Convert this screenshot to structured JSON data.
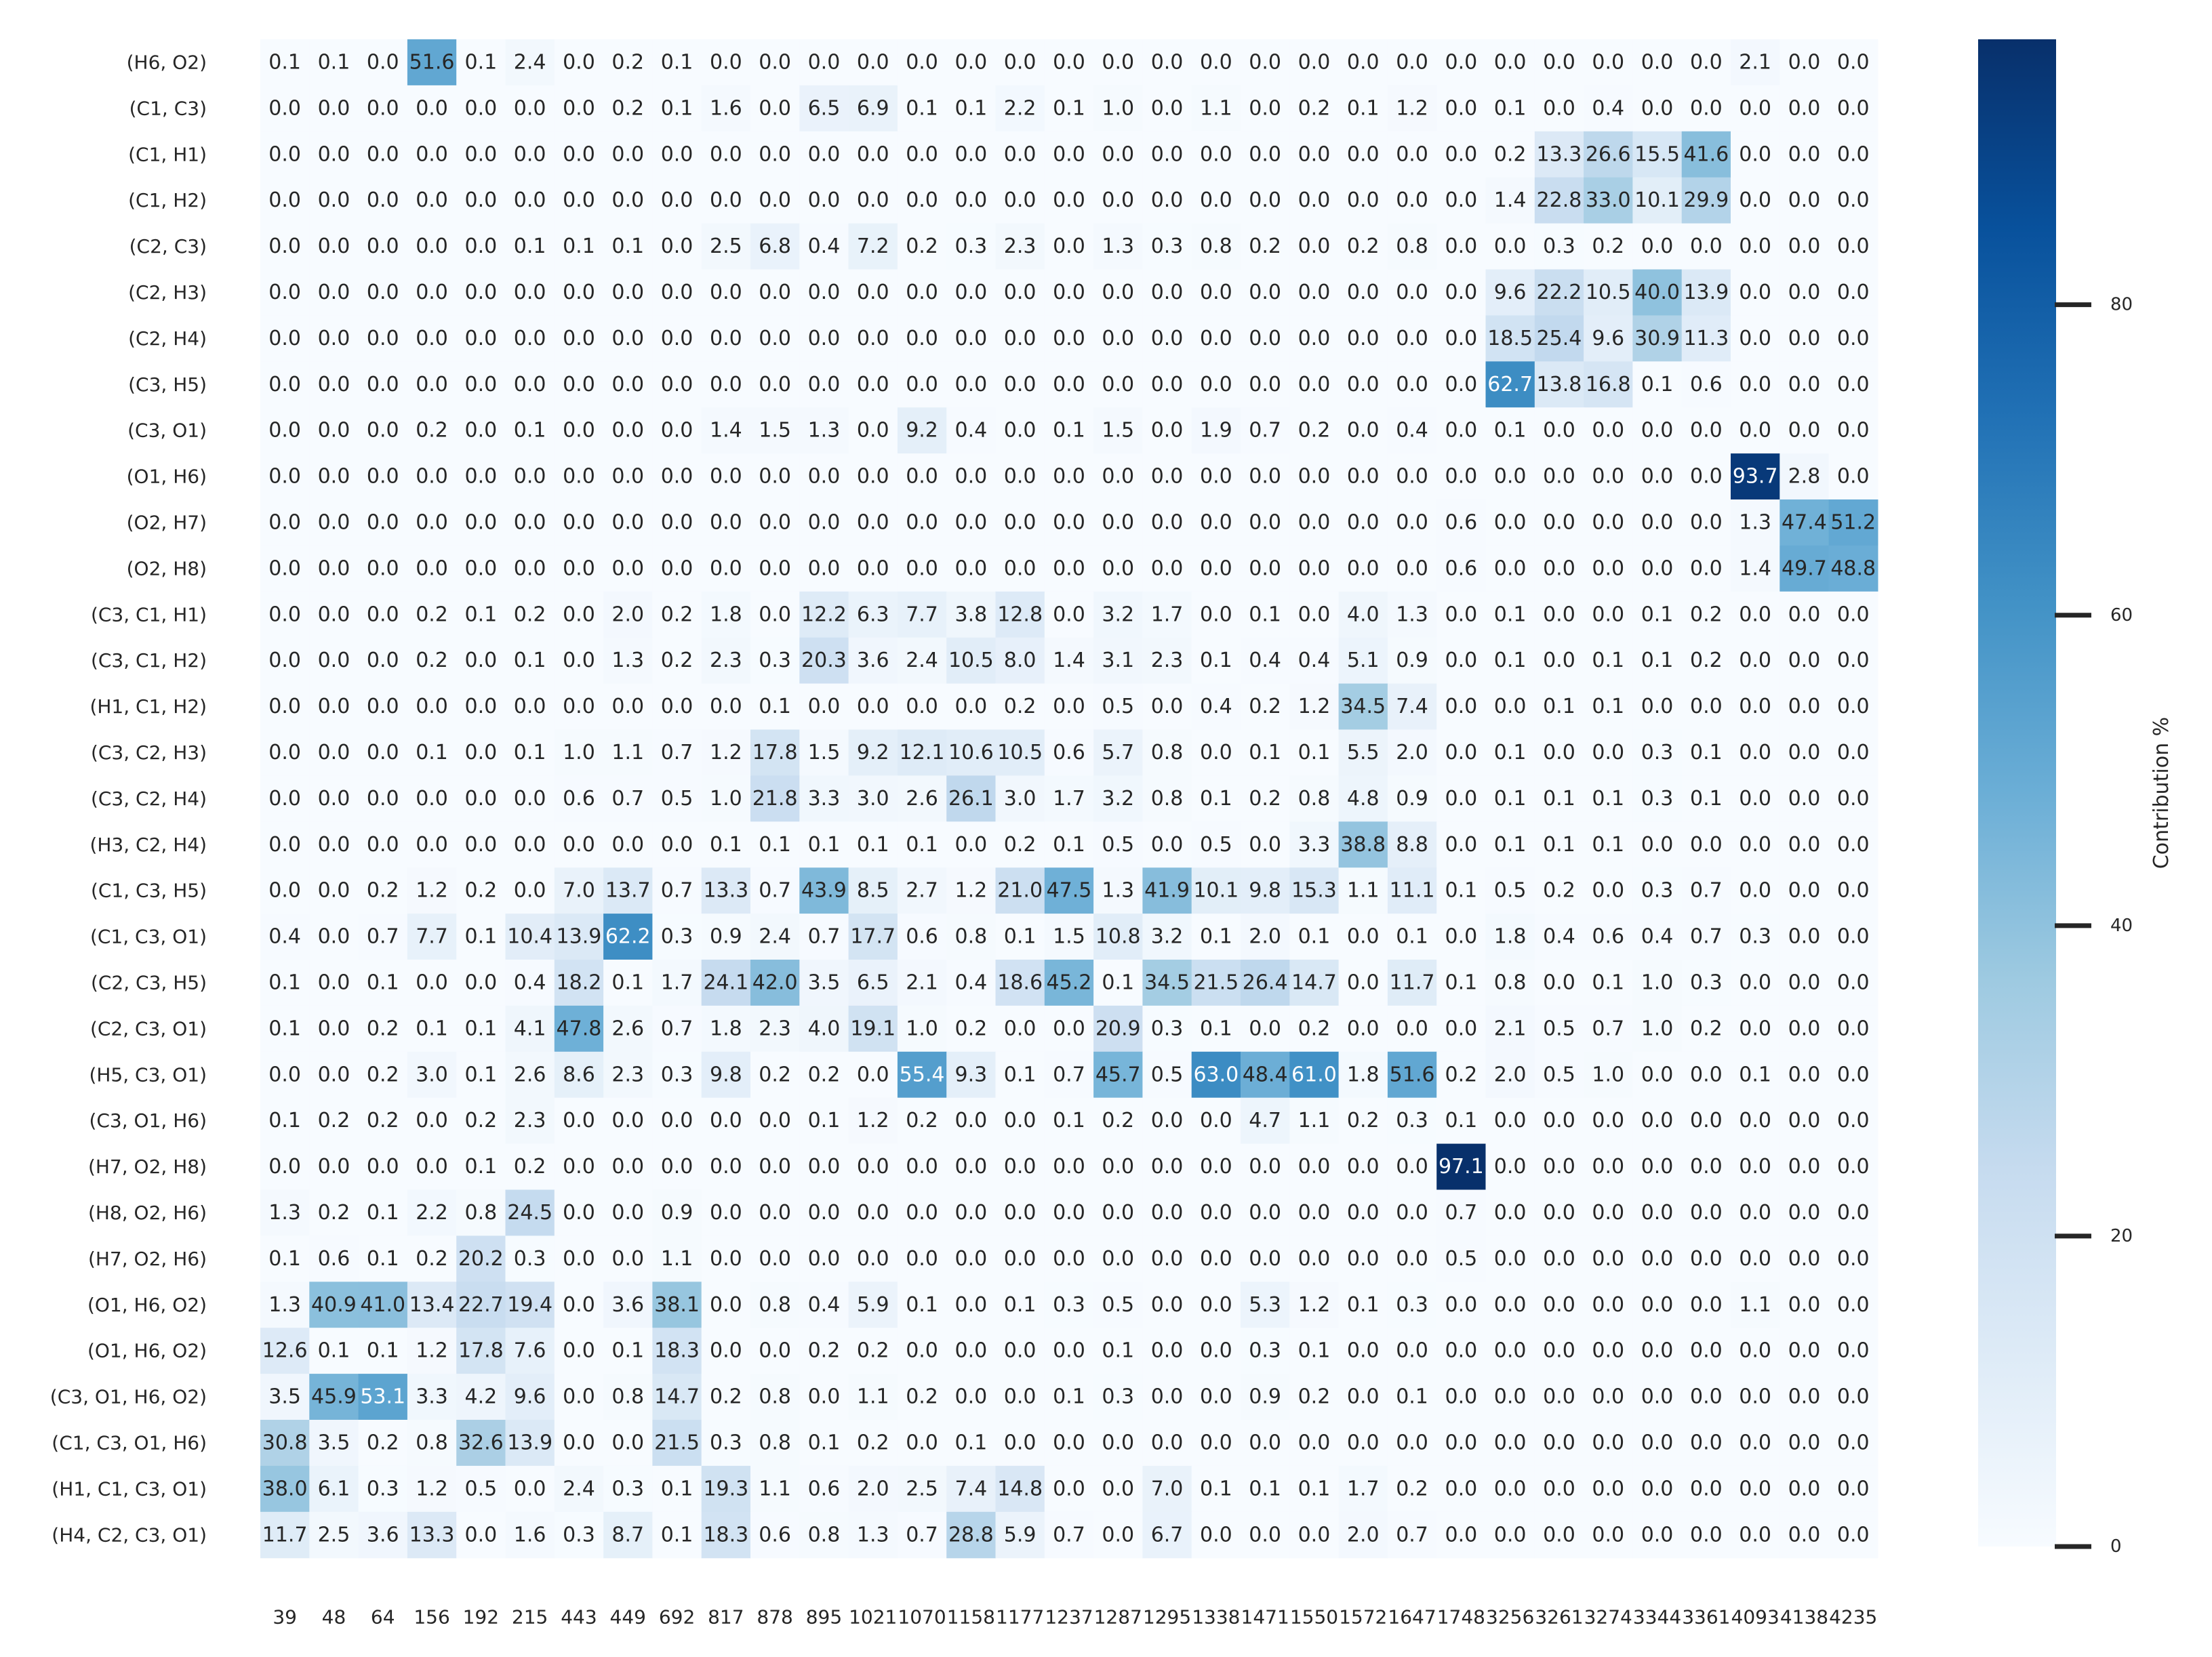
{
  "chart_data": {
    "type": "heatmap",
    "colormap": "Blues",
    "vmin": 0,
    "vmax": 97.1,
    "colorbar": {
      "label": "Contribution %",
      "ticks": [
        0,
        20,
        40,
        60,
        80
      ]
    },
    "columns": [
      "39",
      "48",
      "64",
      "156",
      "192",
      "215",
      "443",
      "449",
      "692",
      "817",
      "878",
      "895",
      "1021",
      "1070",
      "1158",
      "1177",
      "1237",
      "1287",
      "1295",
      "1338",
      "1471",
      "1550",
      "1572",
      "1647",
      "1748",
      "3256",
      "3261",
      "3274",
      "3344",
      "3361",
      "4093",
      "4138",
      "4235"
    ],
    "rows": [
      {
        "label": "(H6, O2)",
        "values": [
          0.1,
          0.1,
          0.0,
          51.6,
          0.1,
          2.4,
          0.0,
          0.2,
          0.1,
          0.0,
          0.0,
          0.0,
          0.0,
          0.0,
          0.0,
          0.0,
          0.0,
          0.0,
          0.0,
          0.0,
          0.0,
          0.0,
          0.0,
          0.0,
          0.0,
          0.0,
          0.0,
          0.0,
          0.0,
          0.0,
          2.1,
          0.0,
          0.0
        ]
      },
      {
        "label": "(C1, C3)",
        "values": [
          0.0,
          0.0,
          0.0,
          0.0,
          0.0,
          0.0,
          0.0,
          0.2,
          0.1,
          1.6,
          0.0,
          6.5,
          6.9,
          0.1,
          0.1,
          2.2,
          0.1,
          1.0,
          0.0,
          1.1,
          0.0,
          0.2,
          0.1,
          1.2,
          0.0,
          0.1,
          0.0,
          0.4,
          0.0,
          0.0,
          0.0,
          0.0,
          0.0
        ]
      },
      {
        "label": "(C1, H1)",
        "values": [
          0.0,
          0.0,
          0.0,
          0.0,
          0.0,
          0.0,
          0.0,
          0.0,
          0.0,
          0.0,
          0.0,
          0.0,
          0.0,
          0.0,
          0.0,
          0.0,
          0.0,
          0.0,
          0.0,
          0.0,
          0.0,
          0.0,
          0.0,
          0.0,
          0.0,
          0.2,
          13.3,
          26.6,
          15.5,
          41.6,
          0.0,
          0.0,
          0.0
        ]
      },
      {
        "label": "(C1, H2)",
        "values": [
          0.0,
          0.0,
          0.0,
          0.0,
          0.0,
          0.0,
          0.0,
          0.0,
          0.0,
          0.0,
          0.0,
          0.0,
          0.0,
          0.0,
          0.0,
          0.0,
          0.0,
          0.0,
          0.0,
          0.0,
          0.0,
          0.0,
          0.0,
          0.0,
          0.0,
          1.4,
          22.8,
          33.0,
          10.1,
          29.9,
          0.0,
          0.0,
          0.0
        ]
      },
      {
        "label": "(C2, C3)",
        "values": [
          0.0,
          0.0,
          0.0,
          0.0,
          0.0,
          0.1,
          0.1,
          0.1,
          0.0,
          2.5,
          6.8,
          0.4,
          7.2,
          0.2,
          0.3,
          2.3,
          0.0,
          1.3,
          0.3,
          0.8,
          0.2,
          0.0,
          0.2,
          0.8,
          0.0,
          0.0,
          0.3,
          0.2,
          0.0,
          0.0,
          0.0,
          0.0,
          0.0
        ]
      },
      {
        "label": "(C2, H3)",
        "values": [
          0.0,
          0.0,
          0.0,
          0.0,
          0.0,
          0.0,
          0.0,
          0.0,
          0.0,
          0.0,
          0.0,
          0.0,
          0.0,
          0.0,
          0.0,
          0.0,
          0.0,
          0.0,
          0.0,
          0.0,
          0.0,
          0.0,
          0.0,
          0.0,
          0.0,
          9.6,
          22.2,
          10.5,
          40.0,
          13.9,
          0.0,
          0.0,
          0.0
        ]
      },
      {
        "label": "(C2, H4)",
        "values": [
          0.0,
          0.0,
          0.0,
          0.0,
          0.0,
          0.0,
          0.0,
          0.0,
          0.0,
          0.0,
          0.0,
          0.0,
          0.0,
          0.0,
          0.0,
          0.0,
          0.0,
          0.0,
          0.0,
          0.0,
          0.0,
          0.0,
          0.0,
          0.0,
          0.0,
          18.5,
          25.4,
          9.6,
          30.9,
          11.3,
          0.0,
          0.0,
          0.0
        ]
      },
      {
        "label": "(C3, H5)",
        "values": [
          0.0,
          0.0,
          0.0,
          0.0,
          0.0,
          0.0,
          0.0,
          0.0,
          0.0,
          0.0,
          0.0,
          0.0,
          0.0,
          0.0,
          0.0,
          0.0,
          0.0,
          0.0,
          0.0,
          0.0,
          0.0,
          0.0,
          0.0,
          0.0,
          0.0,
          62.7,
          13.8,
          16.8,
          0.1,
          0.6,
          0.0,
          0.0,
          0.0
        ]
      },
      {
        "label": "(C3, O1)",
        "values": [
          0.0,
          0.0,
          0.0,
          0.2,
          0.0,
          0.1,
          0.0,
          0.0,
          0.0,
          1.4,
          1.5,
          1.3,
          0.0,
          9.2,
          0.4,
          0.0,
          0.1,
          1.5,
          0.0,
          1.9,
          0.7,
          0.2,
          0.0,
          0.4,
          0.0,
          0.1,
          0.0,
          0.0,
          0.0,
          0.0,
          0.0,
          0.0,
          0.0
        ]
      },
      {
        "label": "(O1, H6)",
        "values": [
          0.0,
          0.0,
          0.0,
          0.0,
          0.0,
          0.0,
          0.0,
          0.0,
          0.0,
          0.0,
          0.0,
          0.0,
          0.0,
          0.0,
          0.0,
          0.0,
          0.0,
          0.0,
          0.0,
          0.0,
          0.0,
          0.0,
          0.0,
          0.0,
          0.0,
          0.0,
          0.0,
          0.0,
          0.0,
          0.0,
          93.7,
          2.8,
          0.0
        ]
      },
      {
        "label": "(O2, H7)",
        "values": [
          0.0,
          0.0,
          0.0,
          0.0,
          0.0,
          0.0,
          0.0,
          0.0,
          0.0,
          0.0,
          0.0,
          0.0,
          0.0,
          0.0,
          0.0,
          0.0,
          0.0,
          0.0,
          0.0,
          0.0,
          0.0,
          0.0,
          0.0,
          0.0,
          0.6,
          0.0,
          0.0,
          0.0,
          0.0,
          0.0,
          1.3,
          47.4,
          51.2
        ]
      },
      {
        "label": "(O2, H8)",
        "values": [
          0.0,
          0.0,
          0.0,
          0.0,
          0.0,
          0.0,
          0.0,
          0.0,
          0.0,
          0.0,
          0.0,
          0.0,
          0.0,
          0.0,
          0.0,
          0.0,
          0.0,
          0.0,
          0.0,
          0.0,
          0.0,
          0.0,
          0.0,
          0.0,
          0.6,
          0.0,
          0.0,
          0.0,
          0.0,
          0.0,
          1.4,
          49.7,
          48.8
        ]
      },
      {
        "label": "(C3, C1, H1)",
        "values": [
          0.0,
          0.0,
          0.0,
          0.2,
          0.1,
          0.2,
          0.0,
          2.0,
          0.2,
          1.8,
          0.0,
          12.2,
          6.3,
          7.7,
          3.8,
          12.8,
          0.0,
          3.2,
          1.7,
          0.0,
          0.1,
          0.0,
          4.0,
          1.3,
          0.0,
          0.1,
          0.0,
          0.0,
          0.1,
          0.2,
          0.0,
          0.0,
          0.0
        ]
      },
      {
        "label": "(C3, C1, H2)",
        "values": [
          0.0,
          0.0,
          0.0,
          0.2,
          0.0,
          0.1,
          0.0,
          1.3,
          0.2,
          2.3,
          0.3,
          20.3,
          3.6,
          2.4,
          10.5,
          8.0,
          1.4,
          3.1,
          2.3,
          0.1,
          0.4,
          0.4,
          5.1,
          0.9,
          0.0,
          0.1,
          0.0,
          0.1,
          0.1,
          0.2,
          0.0,
          0.0,
          0.0
        ]
      },
      {
        "label": "(H1, C1, H2)",
        "values": [
          0.0,
          0.0,
          0.0,
          0.0,
          0.0,
          0.0,
          0.0,
          0.0,
          0.0,
          0.0,
          0.1,
          0.0,
          0.0,
          0.0,
          0.0,
          0.2,
          0.0,
          0.5,
          0.0,
          0.4,
          0.2,
          1.2,
          34.5,
          7.4,
          0.0,
          0.0,
          0.1,
          0.1,
          0.0,
          0.0,
          0.0,
          0.0,
          0.0
        ]
      },
      {
        "label": "(C3, C2, H3)",
        "values": [
          0.0,
          0.0,
          0.0,
          0.1,
          0.0,
          0.1,
          1.0,
          1.1,
          0.7,
          1.2,
          17.8,
          1.5,
          9.2,
          12.1,
          10.6,
          10.5,
          0.6,
          5.7,
          0.8,
          0.0,
          0.1,
          0.1,
          5.5,
          2.0,
          0.0,
          0.1,
          0.0,
          0.0,
          0.3,
          0.1,
          0.0,
          0.0,
          0.0
        ]
      },
      {
        "label": "(C3, C2, H4)",
        "values": [
          0.0,
          0.0,
          0.0,
          0.0,
          0.0,
          0.0,
          0.6,
          0.7,
          0.5,
          1.0,
          21.8,
          3.3,
          3.0,
          2.6,
          26.1,
          3.0,
          1.7,
          3.2,
          0.8,
          0.1,
          0.2,
          0.8,
          4.8,
          0.9,
          0.0,
          0.1,
          0.1,
          0.1,
          0.3,
          0.1,
          0.0,
          0.0,
          0.0
        ]
      },
      {
        "label": "(H3, C2, H4)",
        "values": [
          0.0,
          0.0,
          0.0,
          0.0,
          0.0,
          0.0,
          0.0,
          0.0,
          0.0,
          0.1,
          0.1,
          0.1,
          0.1,
          0.1,
          0.0,
          0.2,
          0.1,
          0.5,
          0.0,
          0.5,
          0.0,
          3.3,
          38.8,
          8.8,
          0.0,
          0.1,
          0.1,
          0.1,
          0.0,
          0.0,
          0.0,
          0.0,
          0.0
        ]
      },
      {
        "label": "(C1, C3, H5)",
        "values": [
          0.0,
          0.0,
          0.2,
          1.2,
          0.2,
          0.0,
          7.0,
          13.7,
          0.7,
          13.3,
          0.7,
          43.9,
          8.5,
          2.7,
          1.2,
          21.0,
          47.5,
          1.3,
          41.9,
          10.1,
          9.8,
          15.3,
          1.1,
          11.1,
          0.1,
          0.5,
          0.2,
          0.0,
          0.3,
          0.7,
          0.0,
          0.0,
          0.0
        ]
      },
      {
        "label": "(C1, C3, O1)",
        "values": [
          0.4,
          0.0,
          0.7,
          7.7,
          0.1,
          10.4,
          13.9,
          62.2,
          0.3,
          0.9,
          2.4,
          0.7,
          17.7,
          0.6,
          0.8,
          0.1,
          1.5,
          10.8,
          3.2,
          0.1,
          2.0,
          0.1,
          0.0,
          0.1,
          0.0,
          1.8,
          0.4,
          0.6,
          0.4,
          0.7,
          0.3,
          0.0,
          0.0
        ]
      },
      {
        "label": "(C2, C3, H5)",
        "values": [
          0.1,
          0.0,
          0.1,
          0.0,
          0.0,
          0.4,
          18.2,
          0.1,
          1.7,
          24.1,
          42.0,
          3.5,
          6.5,
          2.1,
          0.4,
          18.6,
          45.2,
          0.1,
          34.5,
          21.5,
          26.4,
          14.7,
          0.0,
          11.7,
          0.1,
          0.8,
          0.0,
          0.1,
          1.0,
          0.3,
          0.0,
          0.0,
          0.0
        ]
      },
      {
        "label": "(C2, C3, O1)",
        "values": [
          0.1,
          0.0,
          0.2,
          0.1,
          0.1,
          4.1,
          47.8,
          2.6,
          0.7,
          1.8,
          2.3,
          4.0,
          19.1,
          1.0,
          0.2,
          0.0,
          0.0,
          20.9,
          0.3,
          0.1,
          0.0,
          0.2,
          0.0,
          0.0,
          0.0,
          2.1,
          0.5,
          0.7,
          1.0,
          0.2,
          0.0,
          0.0,
          0.0
        ]
      },
      {
        "label": "(H5, C3, O1)",
        "values": [
          0.0,
          0.0,
          0.2,
          3.0,
          0.1,
          2.6,
          8.6,
          2.3,
          0.3,
          9.8,
          0.2,
          0.2,
          0.0,
          55.4,
          9.3,
          0.1,
          0.7,
          45.7,
          0.5,
          63.0,
          48.4,
          61.0,
          1.8,
          51.6,
          0.2,
          2.0,
          0.5,
          1.0,
          0.0,
          0.0,
          0.1,
          0.0,
          0.0
        ]
      },
      {
        "label": "(C3, O1, H6)",
        "values": [
          0.1,
          0.2,
          0.2,
          0.0,
          0.2,
          2.3,
          0.0,
          0.0,
          0.0,
          0.0,
          0.0,
          0.1,
          1.2,
          0.2,
          0.0,
          0.0,
          0.1,
          0.2,
          0.0,
          0.0,
          4.7,
          1.1,
          0.2,
          0.3,
          0.1,
          0.0,
          0.0,
          0.0,
          0.0,
          0.0,
          0.0,
          0.0,
          0.0
        ]
      },
      {
        "label": "(H7, O2, H8)",
        "values": [
          0.0,
          0.0,
          0.0,
          0.0,
          0.1,
          0.2,
          0.0,
          0.0,
          0.0,
          0.0,
          0.0,
          0.0,
          0.0,
          0.0,
          0.0,
          0.0,
          0.0,
          0.0,
          0.0,
          0.0,
          0.0,
          0.0,
          0.0,
          0.0,
          97.1,
          0.0,
          0.0,
          0.0,
          0.0,
          0.0,
          0.0,
          0.0,
          0.0
        ]
      },
      {
        "label": "(H8, O2, H6)",
        "values": [
          1.3,
          0.2,
          0.1,
          2.2,
          0.8,
          24.5,
          0.0,
          0.0,
          0.9,
          0.0,
          0.0,
          0.0,
          0.0,
          0.0,
          0.0,
          0.0,
          0.0,
          0.0,
          0.0,
          0.0,
          0.0,
          0.0,
          0.0,
          0.0,
          0.7,
          0.0,
          0.0,
          0.0,
          0.0,
          0.0,
          0.0,
          0.0,
          0.0
        ]
      },
      {
        "label": "(H7, O2, H6)",
        "values": [
          0.1,
          0.6,
          0.1,
          0.2,
          20.2,
          0.3,
          0.0,
          0.0,
          1.1,
          0.0,
          0.0,
          0.0,
          0.0,
          0.0,
          0.0,
          0.0,
          0.0,
          0.0,
          0.0,
          0.0,
          0.0,
          0.0,
          0.0,
          0.0,
          0.5,
          0.0,
          0.0,
          0.0,
          0.0,
          0.0,
          0.0,
          0.0,
          0.0
        ]
      },
      {
        "label": "(O1, H6, O2)",
        "values": [
          1.3,
          40.9,
          41.0,
          13.4,
          22.7,
          19.4,
          0.0,
          3.6,
          38.1,
          0.0,
          0.8,
          0.4,
          5.9,
          0.1,
          0.0,
          0.1,
          0.3,
          0.5,
          0.0,
          0.0,
          5.3,
          1.2,
          0.1,
          0.3,
          0.0,
          0.0,
          0.0,
          0.0,
          0.0,
          0.0,
          1.1,
          0.0,
          0.0
        ]
      },
      {
        "label": "(O1, H6, O2)",
        "values": [
          12.6,
          0.1,
          0.1,
          1.2,
          17.8,
          7.6,
          0.0,
          0.1,
          18.3,
          0.0,
          0.0,
          0.2,
          0.2,
          0.0,
          0.0,
          0.0,
          0.0,
          0.1,
          0.0,
          0.0,
          0.3,
          0.1,
          0.0,
          0.0,
          0.0,
          0.0,
          0.0,
          0.0,
          0.0,
          0.0,
          0.0,
          0.0,
          0.0
        ]
      },
      {
        "label": "(C3, O1, H6, O2)",
        "values": [
          3.5,
          45.9,
          53.1,
          3.3,
          4.2,
          9.6,
          0.0,
          0.8,
          14.7,
          0.2,
          0.8,
          0.0,
          1.1,
          0.2,
          0.0,
          0.0,
          0.1,
          0.3,
          0.0,
          0.0,
          0.9,
          0.2,
          0.0,
          0.1,
          0.0,
          0.0,
          0.0,
          0.0,
          0.0,
          0.0,
          0.0,
          0.0,
          0.0
        ]
      },
      {
        "label": "(C1, C3, O1, H6)",
        "values": [
          30.8,
          3.5,
          0.2,
          0.8,
          32.6,
          13.9,
          0.0,
          0.0,
          21.5,
          0.3,
          0.8,
          0.1,
          0.2,
          0.0,
          0.1,
          0.0,
          0.0,
          0.0,
          0.0,
          0.0,
          0.0,
          0.0,
          0.0,
          0.0,
          0.0,
          0.0,
          0.0,
          0.0,
          0.0,
          0.0,
          0.0,
          0.0,
          0.0
        ]
      },
      {
        "label": "(H1, C1, C3, O1)",
        "values": [
          38.0,
          6.1,
          0.3,
          1.2,
          0.5,
          0.0,
          2.4,
          0.3,
          0.1,
          19.3,
          1.1,
          0.6,
          2.0,
          2.5,
          7.4,
          14.8,
          0.0,
          0.0,
          7.0,
          0.1,
          0.1,
          0.1,
          1.7,
          0.2,
          0.0,
          0.0,
          0.0,
          0.0,
          0.0,
          0.0,
          0.0,
          0.0,
          0.0
        ]
      },
      {
        "label": "(H4, C2, C3, O1)",
        "values": [
          11.7,
          2.5,
          3.6,
          13.3,
          0.0,
          1.6,
          0.3,
          8.7,
          0.1,
          18.3,
          0.6,
          0.8,
          1.3,
          0.7,
          28.8,
          5.9,
          0.7,
          0.0,
          6.7,
          0.0,
          0.0,
          0.0,
          2.0,
          0.7,
          0.0,
          0.0,
          0.0,
          0.0,
          0.0,
          0.0,
          0.0,
          0.0,
          0.0
        ]
      }
    ]
  }
}
